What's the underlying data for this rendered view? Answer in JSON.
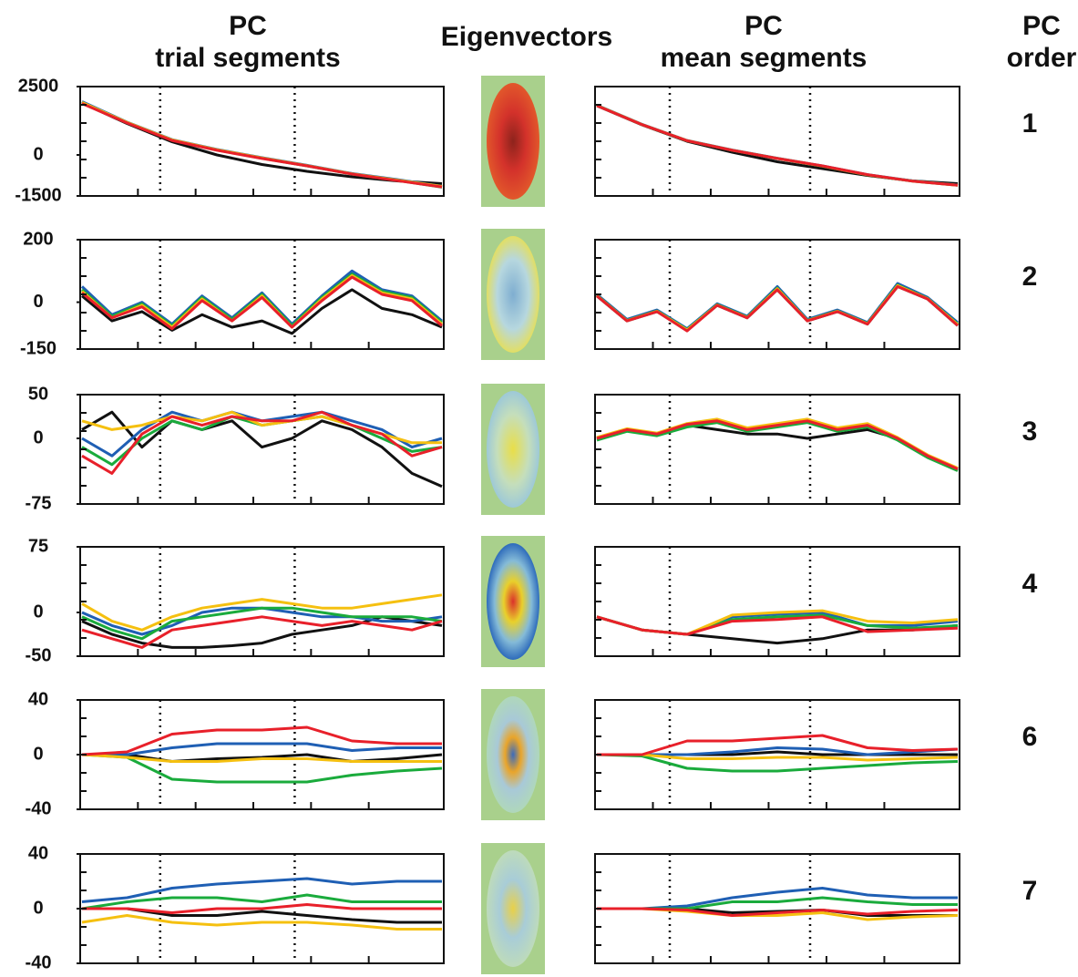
{
  "headers": {
    "trial": [
      "PC",
      "trial segments"
    ],
    "eigen": "Eigenvectors",
    "mean": [
      "PC",
      "mean segments"
    ],
    "order": [
      "PC",
      "order"
    ]
  },
  "orders": [
    "1",
    "2",
    "3",
    "4",
    "6",
    "7"
  ],
  "chart_data": [
    {
      "type": "line",
      "ylim": [
        -1500,
        2500
      ],
      "yticks": [
        2500,
        0,
        -1500
      ],
      "series": [
        {
          "color": "#111111",
          "values": [
            1900,
            1150,
            480,
            0,
            -350,
            -600,
            -800,
            -950,
            -1050
          ]
        },
        {
          "color": "#1f5fb4",
          "values": [
            1950,
            1200,
            560,
            200,
            -100,
            -380,
            -680,
            -900,
            -1150
          ]
        },
        {
          "color": "#1aab3c",
          "values": [
            1900,
            1180,
            540,
            180,
            -120,
            -400,
            -700,
            -930,
            -1180
          ]
        },
        {
          "color": "#f5c010",
          "values": [
            1920,
            1190,
            550,
            190,
            -110,
            -390,
            -690,
            -920,
            -1150
          ]
        },
        {
          "color": "#e8202a",
          "values": [
            1880,
            1170,
            530,
            170,
            -130,
            -400,
            -700,
            -940,
            -1170
          ]
        }
      ]
    },
    {
      "type": "line",
      "ylim": [
        -1500,
        2500
      ],
      "series": [
        {
          "color": "#111111",
          "values": [
            1800,
            1100,
            500,
            100,
            -250,
            -500,
            -750,
            -950,
            -1050
          ]
        },
        {
          "color": "#1f5fb4",
          "values": [
            1820,
            1120,
            530,
            180,
            -120,
            -400,
            -720,
            -950,
            -1100
          ]
        },
        {
          "color": "#1aab3c",
          "values": [
            1810,
            1110,
            520,
            170,
            -130,
            -410,
            -730,
            -960,
            -1110
          ]
        },
        {
          "color": "#f5c010",
          "values": [
            1810,
            1115,
            525,
            175,
            -125,
            -405,
            -725,
            -955,
            -1105
          ]
        },
        {
          "color": "#e8202a",
          "values": [
            1800,
            1110,
            520,
            170,
            -130,
            -400,
            -720,
            -960,
            -1110
          ]
        }
      ]
    },
    {
      "type": "line",
      "ylim": [
        -150,
        200
      ],
      "yticks": [
        200,
        0,
        -150
      ],
      "series": [
        {
          "color": "#111111",
          "values": [
            20,
            -60,
            -30,
            -90,
            -40,
            -80,
            -60,
            -100,
            -20,
            40,
            -20,
            -40,
            -80
          ]
        },
        {
          "color": "#1f5fb4",
          "values": [
            50,
            -40,
            0,
            -70,
            20,
            -50,
            30,
            -70,
            20,
            100,
            40,
            20,
            -60
          ]
        },
        {
          "color": "#1aab3c",
          "values": [
            40,
            -45,
            -5,
            -75,
            15,
            -55,
            25,
            -75,
            15,
            90,
            35,
            15,
            -65
          ]
        },
        {
          "color": "#f5c010",
          "values": [
            35,
            -50,
            -10,
            -80,
            10,
            -60,
            20,
            -80,
            10,
            85,
            30,
            10,
            -70
          ]
        },
        {
          "color": "#e8202a",
          "values": [
            30,
            -50,
            -15,
            -85,
            5,
            -60,
            15,
            -80,
            5,
            80,
            25,
            5,
            -75
          ]
        }
      ]
    },
    {
      "type": "line",
      "ylim": [
        -150,
        200
      ],
      "series": [
        {
          "color": "#111111",
          "values": [
            20,
            -60,
            -30,
            -90,
            -10,
            -50,
            40,
            -60,
            -30,
            -70,
            50,
            10,
            -75
          ]
        },
        {
          "color": "#1f5fb4",
          "values": [
            25,
            -55,
            -25,
            -85,
            -5,
            -45,
            50,
            -55,
            -25,
            -65,
            60,
            15,
            -65
          ]
        },
        {
          "color": "#1aab3c",
          "values": [
            22,
            -58,
            -28,
            -88,
            -8,
            -48,
            45,
            -58,
            -28,
            -68,
            55,
            12,
            -70
          ]
        },
        {
          "color": "#f5c010",
          "values": [
            21,
            -59,
            -29,
            -89,
            -9,
            -49,
            43,
            -59,
            -29,
            -69,
            53,
            11,
            -72
          ]
        },
        {
          "color": "#e8202a",
          "values": [
            20,
            -60,
            -30,
            -92,
            -10,
            -50,
            40,
            -60,
            -30,
            -70,
            50,
            10,
            -75
          ]
        }
      ]
    },
    {
      "type": "line",
      "ylim": [
        -75,
        50
      ],
      "yticks": [
        50,
        0,
        -75
      ],
      "series": [
        {
          "color": "#111111",
          "values": [
            10,
            30,
            -10,
            20,
            10,
            20,
            -10,
            0,
            20,
            10,
            -10,
            -40,
            -55
          ]
        },
        {
          "color": "#1f5fb4",
          "values": [
            0,
            -20,
            10,
            30,
            20,
            30,
            20,
            25,
            30,
            20,
            10,
            -10,
            0
          ]
        },
        {
          "color": "#1aab3c",
          "values": [
            -10,
            -30,
            0,
            20,
            10,
            25,
            15,
            20,
            25,
            15,
            0,
            -15,
            -10
          ]
        },
        {
          "color": "#f5c010",
          "values": [
            20,
            10,
            15,
            25,
            20,
            30,
            15,
            20,
            25,
            15,
            5,
            -5,
            -5
          ]
        },
        {
          "color": "#e8202a",
          "values": [
            -20,
            -40,
            5,
            25,
            15,
            25,
            20,
            20,
            30,
            15,
            5,
            -20,
            -10
          ]
        }
      ]
    },
    {
      "type": "line",
      "ylim": [
        -75,
        50
      ],
      "series": [
        {
          "color": "#111111",
          "values": [
            0,
            10,
            5,
            15,
            10,
            5,
            5,
            0,
            5,
            10,
            0,
            -20,
            -35
          ]
        },
        {
          "color": "#1f5fb4",
          "values": [
            0,
            10,
            5,
            15,
            20,
            10,
            15,
            20,
            10,
            15,
            0,
            -20,
            -35
          ]
        },
        {
          "color": "#1aab3c",
          "values": [
            -2,
            8,
            3,
            13,
            18,
            8,
            13,
            18,
            8,
            13,
            -2,
            -22,
            -37
          ]
        },
        {
          "color": "#f5c010",
          "values": [
            1,
            11,
            6,
            17,
            22,
            12,
            17,
            22,
            12,
            17,
            1,
            -19,
            -34
          ]
        },
        {
          "color": "#e8202a",
          "values": [
            0,
            10,
            5,
            16,
            20,
            10,
            15,
            20,
            10,
            15,
            0,
            -20,
            -35
          ]
        }
      ]
    },
    {
      "type": "line",
      "ylim": [
        -50,
        75
      ],
      "yticks": [
        75,
        0,
        -50
      ],
      "series": [
        {
          "color": "#111111",
          "values": [
            -10,
            -25,
            -35,
            -40,
            -40,
            -38,
            -35,
            -25,
            -20,
            -15,
            -5,
            -10,
            -15
          ]
        },
        {
          "color": "#1f5fb4",
          "values": [
            0,
            -15,
            -25,
            -15,
            0,
            5,
            5,
            0,
            -5,
            -5,
            -10,
            -10,
            -5
          ]
        },
        {
          "color": "#1aab3c",
          "values": [
            -5,
            -20,
            -30,
            -10,
            -5,
            0,
            5,
            5,
            0,
            -5,
            -5,
            -5,
            -10
          ]
        },
        {
          "color": "#f5c010",
          "values": [
            10,
            -10,
            -20,
            -5,
            5,
            10,
            15,
            10,
            5,
            5,
            10,
            15,
            20
          ]
        },
        {
          "color": "#e8202a",
          "values": [
            -20,
            -30,
            -40,
            -20,
            -15,
            -10,
            -5,
            -10,
            -15,
            -10,
            -15,
            -20,
            -10
          ]
        }
      ]
    },
    {
      "type": "line",
      "ylim": [
        -50,
        75
      ],
      "series": [
        {
          "color": "#111111",
          "values": [
            -5,
            -20,
            -25,
            -30,
            -35,
            -30,
            -20,
            -20,
            -15
          ]
        },
        {
          "color": "#1f5fb4",
          "values": [
            -5,
            -20,
            -25,
            -5,
            -2,
            0,
            -15,
            -15,
            -10
          ]
        },
        {
          "color": "#1aab3c",
          "values": [
            -5,
            -20,
            -25,
            -8,
            -5,
            -3,
            -15,
            -18,
            -15
          ]
        },
        {
          "color": "#f5c010",
          "values": [
            -5,
            -20,
            -25,
            -3,
            0,
            2,
            -10,
            -12,
            -8
          ]
        },
        {
          "color": "#e8202a",
          "values": [
            -5,
            -20,
            -25,
            -10,
            -8,
            -5,
            -22,
            -20,
            -18
          ]
        }
      ]
    },
    {
      "type": "line",
      "ylim": [
        -40,
        40
      ],
      "yticks": [
        40,
        0,
        -40
      ],
      "series": [
        {
          "color": "#111111",
          "values": [
            0,
            0,
            -5,
            -3,
            -2,
            0,
            -5,
            -3,
            0
          ]
        },
        {
          "color": "#1f5fb4",
          "values": [
            0,
            0,
            5,
            8,
            8,
            8,
            3,
            5,
            5
          ]
        },
        {
          "color": "#1aab3c",
          "values": [
            0,
            -2,
            -18,
            -20,
            -20,
            -20,
            -15,
            -12,
            -10
          ]
        },
        {
          "color": "#f5c010",
          "values": [
            0,
            -2,
            -5,
            -5,
            -3,
            -3,
            -5,
            -5,
            -5
          ]
        },
        {
          "color": "#e8202a",
          "values": [
            0,
            2,
            15,
            18,
            18,
            20,
            10,
            8,
            8
          ]
        }
      ]
    },
    {
      "type": "line",
      "ylim": [
        -40,
        40
      ],
      "series": [
        {
          "color": "#111111",
          "values": [
            0,
            0,
            0,
            0,
            2,
            0,
            0,
            0,
            0
          ]
        },
        {
          "color": "#1f5fb4",
          "values": [
            0,
            0,
            0,
            2,
            5,
            4,
            0,
            2,
            4
          ]
        },
        {
          "color": "#1aab3c",
          "values": [
            0,
            -1,
            -10,
            -12,
            -12,
            -10,
            -8,
            -6,
            -5
          ]
        },
        {
          "color": "#f5c010",
          "values": [
            0,
            0,
            -3,
            -3,
            -2,
            -2,
            -4,
            -3,
            -2
          ]
        },
        {
          "color": "#e8202a",
          "values": [
            0,
            0,
            10,
            10,
            12,
            14,
            5,
            3,
            4
          ]
        }
      ]
    },
    {
      "type": "line",
      "ylim": [
        -40,
        40
      ],
      "yticks": [
        40,
        0,
        -40
      ],
      "series": [
        {
          "color": "#111111",
          "values": [
            0,
            0,
            -5,
            -5,
            -2,
            -5,
            -8,
            -10,
            -10
          ]
        },
        {
          "color": "#1f5fb4",
          "values": [
            5,
            8,
            15,
            18,
            20,
            22,
            18,
            20,
            20
          ]
        },
        {
          "color": "#1aab3c",
          "values": [
            0,
            5,
            8,
            8,
            5,
            10,
            5,
            5,
            5
          ]
        },
        {
          "color": "#f5c010",
          "values": [
            -10,
            -5,
            -10,
            -12,
            -10,
            -10,
            -12,
            -15,
            -15
          ]
        },
        {
          "color": "#e8202a",
          "values": [
            0,
            0,
            -3,
            0,
            0,
            3,
            0,
            0,
            0
          ]
        }
      ]
    },
    {
      "type": "line",
      "ylim": [
        -40,
        40
      ],
      "series": [
        {
          "color": "#111111",
          "values": [
            0,
            0,
            0,
            -3,
            -2,
            -1,
            -5,
            -5,
            -5
          ]
        },
        {
          "color": "#1f5fb4",
          "values": [
            0,
            0,
            2,
            8,
            12,
            15,
            10,
            8,
            8
          ]
        },
        {
          "color": "#1aab3c",
          "values": [
            0,
            0,
            0,
            5,
            5,
            8,
            5,
            3,
            3
          ]
        },
        {
          "color": "#f5c010",
          "values": [
            0,
            0,
            -2,
            -5,
            -5,
            -3,
            -8,
            -6,
            -5
          ]
        },
        {
          "color": "#e8202a",
          "values": [
            0,
            0,
            -1,
            -5,
            -3,
            -1,
            -4,
            -2,
            -1
          ]
        }
      ]
    }
  ]
}
